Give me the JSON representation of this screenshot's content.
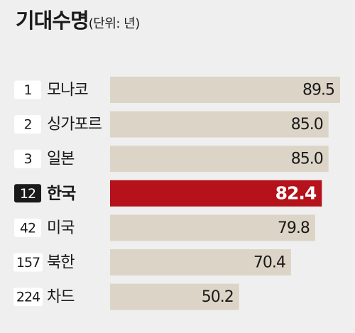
{
  "chart_data": {
    "type": "bar",
    "orientation": "horizontal",
    "title": "기대수명",
    "unit_label": "(단위: 년)",
    "xlim": [
      0,
      100
    ],
    "rows": [
      {
        "rank": "1",
        "country": "모나코",
        "value": 89.5,
        "label": "89.5"
      },
      {
        "rank": "2",
        "country": "싱가포르",
        "value": 85.0,
        "label": "85.0"
      },
      {
        "rank": "3",
        "country": "일본",
        "value": 85.0,
        "label": "85.0"
      },
      {
        "rank": "12",
        "country": "한국",
        "value": 82.4,
        "label": "82.4",
        "highlight": true
      },
      {
        "rank": "42",
        "country": "미국",
        "value": 79.8,
        "label": "79.8"
      },
      {
        "rank": "157",
        "country": "북한",
        "value": 70.4,
        "label": "70.4"
      },
      {
        "rank": "224",
        "country": "차드",
        "value": 50.2,
        "label": "50.2"
      }
    ],
    "colors": {
      "bar": "#dcd5c7",
      "bar_highlight": "#b5121b",
      "rank_box": "#ffffff",
      "rank_box_highlight": "#1a1a1a",
      "text": "#1a1a1a",
      "text_highlight": "#ffffff"
    }
  }
}
